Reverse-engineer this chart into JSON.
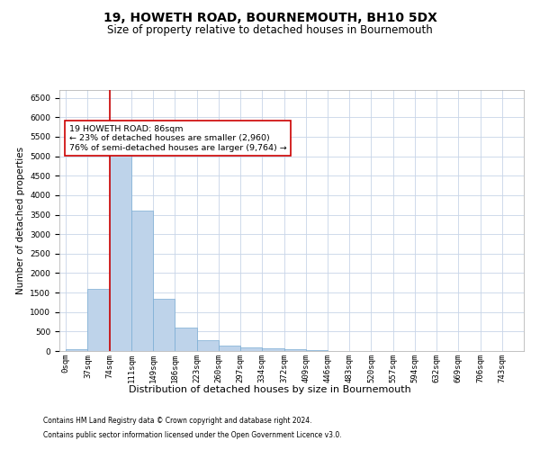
{
  "title": "19, HOWETH ROAD, BOURNEMOUTH, BH10 5DX",
  "subtitle": "Size of property relative to detached houses in Bournemouth",
  "xlabel": "Distribution of detached houses by size in Bournemouth",
  "ylabel": "Number of detached properties",
  "footnote1": "Contains HM Land Registry data © Crown copyright and database right 2024.",
  "footnote2": "Contains public sector information licensed under the Open Government Licence v3.0.",
  "bar_labels": [
    "0sqm",
    "37sqm",
    "74sqm",
    "111sqm",
    "149sqm",
    "186sqm",
    "223sqm",
    "260sqm",
    "297sqm",
    "334sqm",
    "372sqm",
    "409sqm",
    "446sqm",
    "483sqm",
    "520sqm",
    "557sqm",
    "594sqm",
    "632sqm",
    "669sqm",
    "706sqm",
    "743sqm"
  ],
  "bar_values": [
    50,
    1600,
    5050,
    3600,
    1350,
    600,
    270,
    130,
    100,
    80,
    45,
    20,
    10,
    5,
    3,
    2,
    1,
    1,
    0,
    0,
    0
  ],
  "bar_color": "#bed3ea",
  "bar_edge_color": "#7aadd4",
  "vline_x": 2.0,
  "vline_color": "#cc0000",
  "annotation_text": "19 HOWETH ROAD: 86sqm\n← 23% of detached houses are smaller (2,960)\n76% of semi-detached houses are larger (9,764) →",
  "annotation_box_color": "#ffffff",
  "annotation_box_edge": "#cc0000",
  "ylim": [
    0,
    6700
  ],
  "yticks": [
    0,
    500,
    1000,
    1500,
    2000,
    2500,
    3000,
    3500,
    4000,
    4500,
    5000,
    5500,
    6000,
    6500
  ],
  "background_color": "#ffffff",
  "grid_color": "#c8d4e8",
  "title_fontsize": 10,
  "subtitle_fontsize": 8.5,
  "ylabel_fontsize": 7.5,
  "xlabel_fontsize": 8,
  "tick_fontsize": 6.5,
  "annot_fontsize": 6.8,
  "footnote_fontsize": 5.5,
  "figsize": [
    6.0,
    5.0
  ],
  "dpi": 100
}
